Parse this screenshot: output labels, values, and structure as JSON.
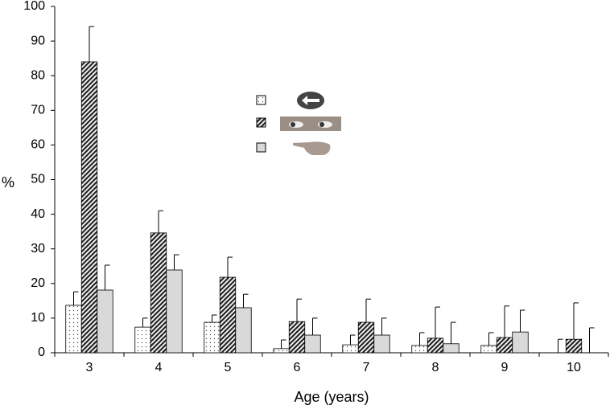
{
  "chart_data": {
    "type": "bar",
    "x_label": "Age (years)",
    "y_label": "%",
    "categories": [
      "3",
      "4",
      "5",
      "6",
      "7",
      "8",
      "9",
      "10"
    ],
    "series": [
      {
        "pattern": "dots",
        "color": "#ffffff",
        "values": [
          13.7,
          7.4,
          8.8,
          1.2,
          2.3,
          2.1,
          2.1,
          0
        ],
        "errors": [
          3.9,
          2.6,
          2.1,
          2.5,
          2.8,
          3.7,
          3.7,
          3.9
        ]
      },
      {
        "pattern": "hatch",
        "color": "#ffffff",
        "values": [
          84,
          34.6,
          21.8,
          9,
          8.8,
          4.2,
          4.4,
          3.9
        ],
        "errors": [
          10.2,
          6.4,
          5.8,
          6.5,
          6.7,
          9,
          9.1,
          10.5
        ]
      },
      {
        "pattern": "solid",
        "color": "#d9d9d9",
        "values": [
          18.1,
          23.9,
          13,
          5.1,
          5.1,
          2.6,
          6,
          0
        ],
        "errors": [
          7.2,
          4.4,
          3.9,
          4.9,
          4.9,
          6.2,
          6.3,
          7.2
        ]
      }
    ],
    "ylim": [
      0,
      100
    ],
    "yticks": [
      0,
      10,
      20,
      30,
      40,
      50,
      60,
      70,
      80,
      90,
      100
    ],
    "grid": false
  }
}
